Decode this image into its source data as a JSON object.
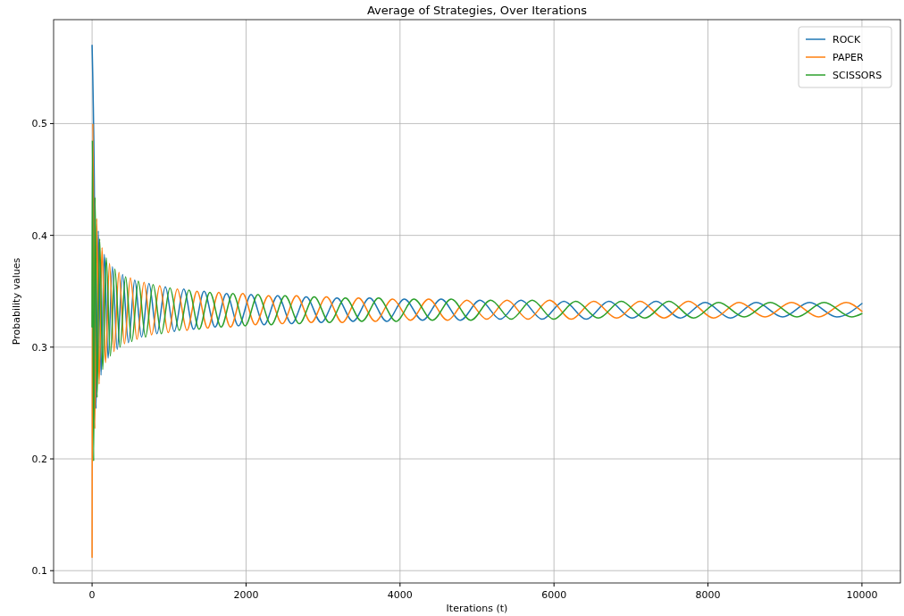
{
  "chart_data": {
    "type": "line",
    "title": "Average of Strategies, Over Iterations",
    "xlabel": "Iterations (t)",
    "ylabel": "Probability values",
    "xlim": [
      -500,
      10500
    ],
    "xticks": [
      0,
      2000,
      4000,
      6000,
      8000,
      10000
    ],
    "ylim": [
      0.089,
      0.593
    ],
    "yticks": [
      0.1,
      0.2,
      0.3,
      0.4,
      0.5
    ],
    "grid": true,
    "legend": "top right",
    "line_style": "solid",
    "marker": "none",
    "series": [
      {
        "name": "ROCK",
        "color": "#1f77b4",
        "x": [
          0,
          28,
          51,
          80,
          116,
          159,
          208,
          264,
          326,
          396,
          472,
          554,
          643,
          739,
          842,
          951,
          1067,
          1190,
          1319,
          1455,
          1597,
          1746,
          1902,
          2065,
          2234,
          2410,
          2592,
          2781,
          2977,
          3180,
          3389,
          3604,
          3827,
          4056,
          4292,
          4534,
          4783,
          5039,
          5301,
          5571,
          5846,
          6129,
          6418,
          6713,
          7016,
          7325,
          7640,
          7963,
          8292,
          8627,
          8970,
          9319,
          9674,
          10000
        ],
        "values": [
          0.57,
          0.452,
          0.245,
          0.404,
          0.275,
          0.383,
          0.29,
          0.372,
          0.298,
          0.365,
          0.304,
          0.36,
          0.309,
          0.357,
          0.312,
          0.354,
          0.314,
          0.352,
          0.316,
          0.35,
          0.318,
          0.348,
          0.319,
          0.347,
          0.32,
          0.346,
          0.321,
          0.345,
          0.322,
          0.344,
          0.323,
          0.344,
          0.323,
          0.343,
          0.324,
          0.343,
          0.324,
          0.342,
          0.325,
          0.342,
          0.325,
          0.341,
          0.325,
          0.341,
          0.326,
          0.341,
          0.326,
          0.34,
          0.326,
          0.34,
          0.327,
          0.34,
          0.327,
          0.339
        ]
      },
      {
        "name": "PAPER",
        "color": "#ff7f0e",
        "x": [
          0,
          10,
          35,
          60,
          91,
          129,
          174,
          226,
          284,
          349,
          420,
          498,
          583,
          675,
          773,
          878,
          989,
          1107,
          1232,
          1363,
          1501,
          1646,
          1798,
          1956,
          2120,
          2292,
          2470,
          2655,
          2846,
          3044,
          3249,
          3460,
          3678,
          3903,
          4134,
          4372,
          4617,
          4868,
          5126,
          5390,
          5662,
          5940,
          6224,
          6516,
          6814,
          7118,
          7429,
          7747,
          8072,
          8403,
          8741,
          9085,
          9437,
          9795,
          10000
        ],
        "values": [
          0.112,
          0.5,
          0.227,
          0.415,
          0.267,
          0.389,
          0.286,
          0.375,
          0.296,
          0.367,
          0.303,
          0.362,
          0.307,
          0.358,
          0.311,
          0.355,
          0.313,
          0.352,
          0.315,
          0.35,
          0.317,
          0.349,
          0.318,
          0.348,
          0.32,
          0.346,
          0.321,
          0.346,
          0.322,
          0.345,
          0.322,
          0.344,
          0.323,
          0.343,
          0.324,
          0.343,
          0.324,
          0.342,
          0.325,
          0.342,
          0.325,
          0.342,
          0.325,
          0.341,
          0.326,
          0.341,
          0.326,
          0.341,
          0.326,
          0.34,
          0.327,
          0.34,
          0.327,
          0.34,
          0.332
        ]
      },
      {
        "name": "SCISSORS",
        "color": "#2ca02c",
        "x": [
          0,
          4,
          20,
          39,
          65,
          98,
          138,
          184,
          237,
          296,
          363,
          435,
          515,
          601,
          694,
          793,
          899,
          1012,
          1132,
          1258,
          1390,
          1530,
          1676,
          1829,
          1988,
          2154,
          2327,
          2506,
          2692,
          2885,
          3084,
          3290,
          3503,
          3722,
          3948,
          4181,
          4420,
          4666,
          4919,
          5178,
          5444,
          5717,
          5996,
          6282,
          6575,
          6874,
          7180,
          7493,
          7812,
          8138,
          8470,
          8809,
          9155,
          9508,
          9867,
          10000
        ],
        "values": [
          0.318,
          0.485,
          0.198,
          0.434,
          0.255,
          0.397,
          0.28,
          0.38,
          0.292,
          0.37,
          0.3,
          0.363,
          0.305,
          0.359,
          0.309,
          0.356,
          0.312,
          0.353,
          0.315,
          0.351,
          0.316,
          0.349,
          0.318,
          0.348,
          0.319,
          0.347,
          0.32,
          0.346,
          0.321,
          0.345,
          0.322,
          0.344,
          0.323,
          0.344,
          0.323,
          0.343,
          0.324,
          0.343,
          0.324,
          0.342,
          0.325,
          0.342,
          0.325,
          0.341,
          0.326,
          0.341,
          0.326,
          0.341,
          0.326,
          0.34,
          0.327,
          0.34,
          0.327,
          0.34,
          0.327,
          0.33
        ]
      }
    ]
  }
}
